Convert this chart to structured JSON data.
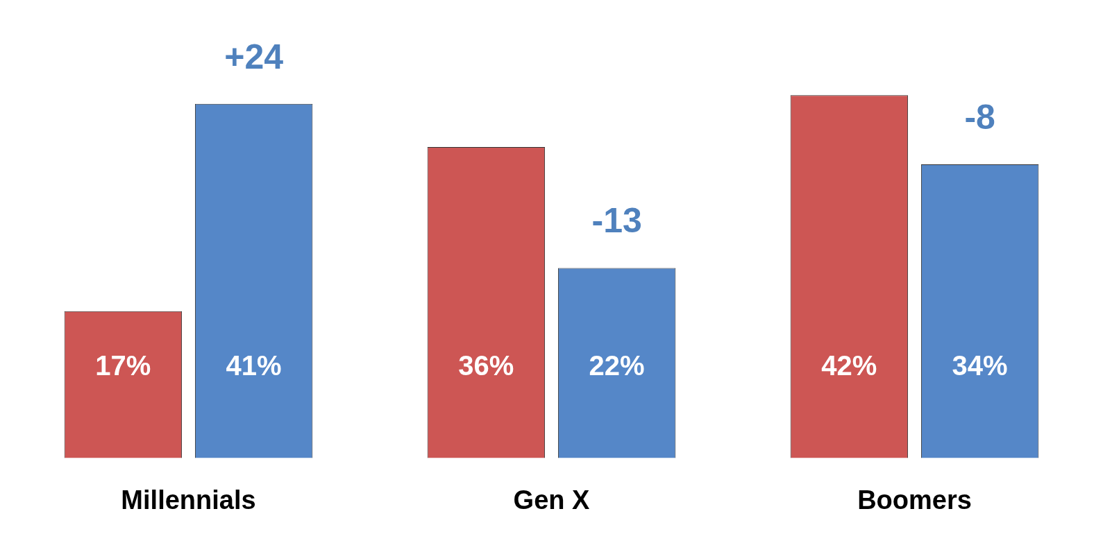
{
  "chart_data": {
    "type": "bar",
    "categories": [
      "Millennials",
      "Gen X",
      "Boomers"
    ],
    "series": [
      {
        "color": "#cd5654",
        "values": [
          17,
          36,
          42
        ],
        "value_labels": [
          "17%",
          "36%",
          "42%"
        ]
      },
      {
        "color": "#5587c8",
        "values": [
          41,
          22,
          34
        ],
        "value_labels": [
          "41%",
          "22%",
          "34%"
        ]
      }
    ],
    "annotations": [
      "+24",
      "-13",
      "-8"
    ],
    "grid": false,
    "legend": false,
    "tick_labels": "x"
  }
}
